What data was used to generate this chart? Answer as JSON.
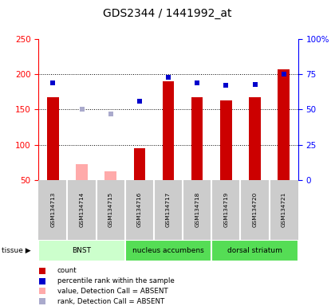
{
  "title": "GDS2344 / 1441992_at",
  "samples": [
    "GSM134713",
    "GSM134714",
    "GSM134715",
    "GSM134716",
    "GSM134717",
    "GSM134718",
    "GSM134719",
    "GSM134720",
    "GSM134721"
  ],
  "bar_values": [
    168,
    null,
    null,
    95,
    190,
    168,
    163,
    168,
    207
  ],
  "bar_absent_values": [
    null,
    72,
    62,
    null,
    null,
    null,
    null,
    null,
    null
  ],
  "rank_present_pct": [
    69,
    null,
    null,
    56,
    73,
    69,
    67,
    68,
    75
  ],
  "rank_absent_pct": [
    null,
    50,
    47,
    null,
    null,
    null,
    null,
    null,
    null
  ],
  "bar_color": "#cc0000",
  "bar_absent_color": "#ffaaaa",
  "rank_present_color": "#0000cc",
  "rank_absent_color": "#aaaacc",
  "ylim_left": [
    50,
    250
  ],
  "ylim_right": [
    0,
    100
  ],
  "yticks_left": [
    50,
    100,
    150,
    200,
    250
  ],
  "yticks_right": [
    0,
    25,
    50,
    75,
    100
  ],
  "ytick_labels_right": [
    "0",
    "25",
    "50",
    "75",
    "100%"
  ],
  "tissues": [
    {
      "label": "BNST",
      "start": 0,
      "end": 3,
      "color": "#ccffcc"
    },
    {
      "label": "nucleus accumbens",
      "start": 3,
      "end": 6,
      "color": "#55dd55"
    },
    {
      "label": "dorsal striatum",
      "start": 6,
      "end": 9,
      "color": "#55dd55"
    }
  ],
  "legend_items": [
    {
      "color": "#cc0000",
      "label": "count"
    },
    {
      "color": "#0000cc",
      "label": "percentile rank within the sample"
    },
    {
      "color": "#ffaaaa",
      "label": "value, Detection Call = ABSENT"
    },
    {
      "color": "#aaaacc",
      "label": "rank, Detection Call = ABSENT"
    }
  ],
  "bar_width": 0.4,
  "background_plot": "#ffffff",
  "background_samples": "#cccccc",
  "background_tissue_bnst": "#ccffcc",
  "background_tissue_nac": "#55dd55",
  "background_tissue_ds": "#55dd55"
}
